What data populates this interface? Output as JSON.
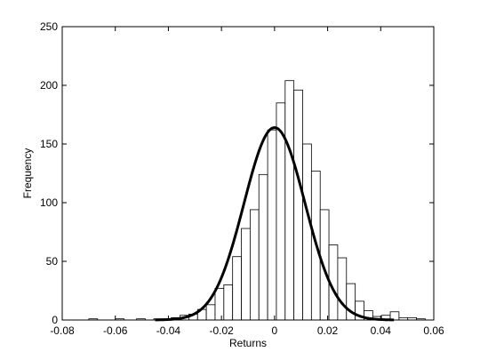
{
  "chart_data": {
    "type": "bar",
    "subtype": "histogram_with_normal_fit",
    "title": "",
    "xlabel": "Returns",
    "ylabel": "Frequency",
    "xlim": [
      -0.08,
      0.06
    ],
    "ylim": [
      0,
      250
    ],
    "xticks": [
      "-0.08",
      "-0.06",
      "-0.04",
      "-0.02",
      "0",
      "0.02",
      "0.04",
      "0.06"
    ],
    "yticks": [
      "0",
      "50",
      "100",
      "150",
      "200",
      "250"
    ],
    "grid": false,
    "legend": "none",
    "bin_width": 0.0033,
    "bins": [
      {
        "x0": -0.07,
        "count": 1
      },
      {
        "x0": -0.06,
        "count": 1
      },
      {
        "x0": -0.052,
        "count": 1
      },
      {
        "x0": -0.0455,
        "count": 1
      },
      {
        "x0": -0.0422,
        "count": 1
      },
      {
        "x0": -0.0389,
        "count": 2
      },
      {
        "x0": -0.0356,
        "count": 4
      },
      {
        "x0": -0.0323,
        "count": 5
      },
      {
        "x0": -0.029,
        "count": 9
      },
      {
        "x0": -0.0257,
        "count": 13
      },
      {
        "x0": -0.0224,
        "count": 27
      },
      {
        "x0": -0.0191,
        "count": 30
      },
      {
        "x0": -0.0158,
        "count": 54
      },
      {
        "x0": -0.0125,
        "count": 78
      },
      {
        "x0": -0.0092,
        "count": 94
      },
      {
        "x0": -0.0059,
        "count": 124
      },
      {
        "x0": -0.0026,
        "count": 162
      },
      {
        "x0": 0.0007,
        "count": 185
      },
      {
        "x0": 0.004,
        "count": 204
      },
      {
        "x0": 0.0073,
        "count": 196
      },
      {
        "x0": 0.0106,
        "count": 150
      },
      {
        "x0": 0.0139,
        "count": 127
      },
      {
        "x0": 0.0172,
        "count": 94
      },
      {
        "x0": 0.0205,
        "count": 64
      },
      {
        "x0": 0.0238,
        "count": 53
      },
      {
        "x0": 0.0271,
        "count": 31
      },
      {
        "x0": 0.0304,
        "count": 16
      },
      {
        "x0": 0.0337,
        "count": 8
      },
      {
        "x0": 0.037,
        "count": 3
      },
      {
        "x0": 0.0403,
        "count": 4
      },
      {
        "x0": 0.0436,
        "count": 7
      },
      {
        "x0": 0.0469,
        "count": 2
      },
      {
        "x0": 0.0502,
        "count": 2
      },
      {
        "x0": 0.0535,
        "count": 1
      }
    ],
    "fit_curve": {
      "type": "normal",
      "mean": 0.0,
      "std": 0.0115,
      "peak": 164
    }
  }
}
